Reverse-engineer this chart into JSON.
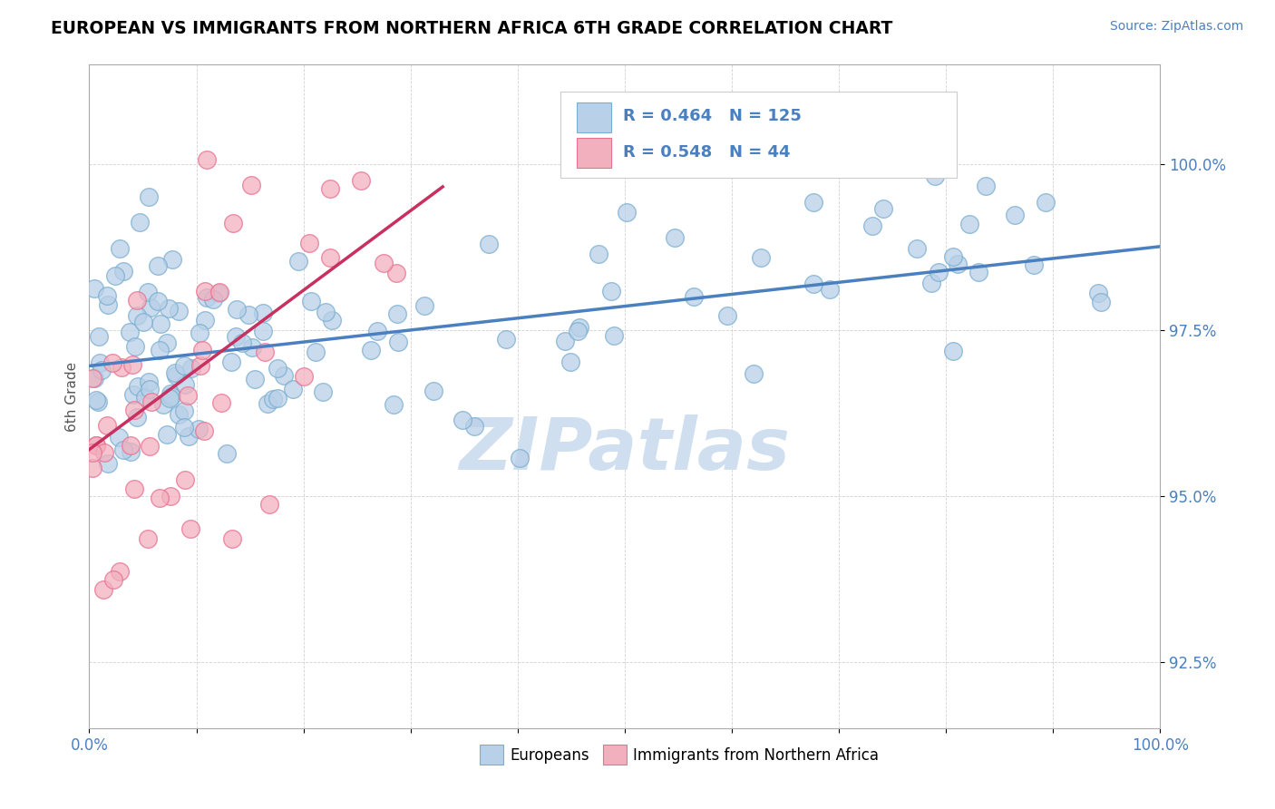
{
  "title": "EUROPEAN VS IMMIGRANTS FROM NORTHERN AFRICA 6TH GRADE CORRELATION CHART",
  "source": "Source: ZipAtlas.com",
  "ylabel": "6th Grade",
  "xlim": [
    0.0,
    100.0
  ],
  "ylim": [
    91.5,
    101.5
  ],
  "yticks": [
    92.5,
    95.0,
    97.5,
    100.0
  ],
  "blue_R": 0.464,
  "blue_N": 125,
  "pink_R": 0.548,
  "pink_N": 44,
  "blue_color": "#b8d0e8",
  "pink_color": "#f2b0be",
  "blue_edge_color": "#7aaed0",
  "pink_edge_color": "#e87090",
  "blue_line_color": "#4a80c0",
  "pink_line_color": "#c83060",
  "text_color": "#4a80c0",
  "watermark_color": "#d0dff0",
  "blue_slope": 0.018,
  "blue_intercept": 97.5,
  "pink_slope": 0.12,
  "pink_intercept": 96.3
}
